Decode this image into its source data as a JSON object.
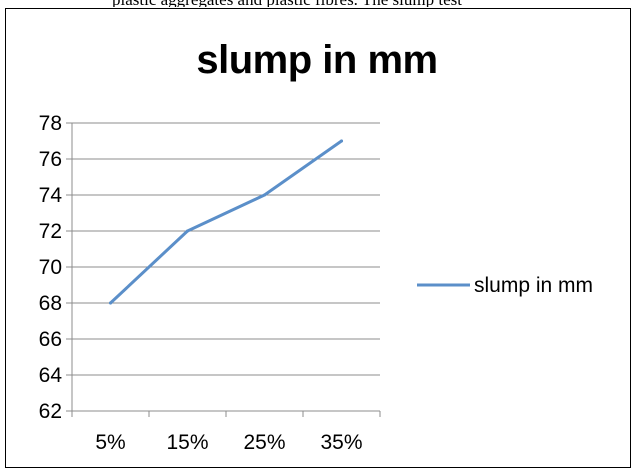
{
  "page": {
    "top_text": "reproducing original text above chart: plastic aggregates and plastic fibres. The slump test"
  },
  "chart_data": {
    "type": "line",
    "title": "slump in mm",
    "xlabel": "",
    "ylabel": "",
    "categories": [
      "5%",
      "15%",
      "25%",
      "35%"
    ],
    "series": [
      {
        "name": "slump in mm",
        "values": [
          68,
          72,
          74,
          77
        ],
        "color": "#5b8fc9"
      }
    ],
    "ylim": [
      62,
      78
    ],
    "yticks": [
      62,
      64,
      66,
      68,
      70,
      72,
      74,
      76,
      78
    ],
    "grid": true,
    "legend": "right"
  }
}
